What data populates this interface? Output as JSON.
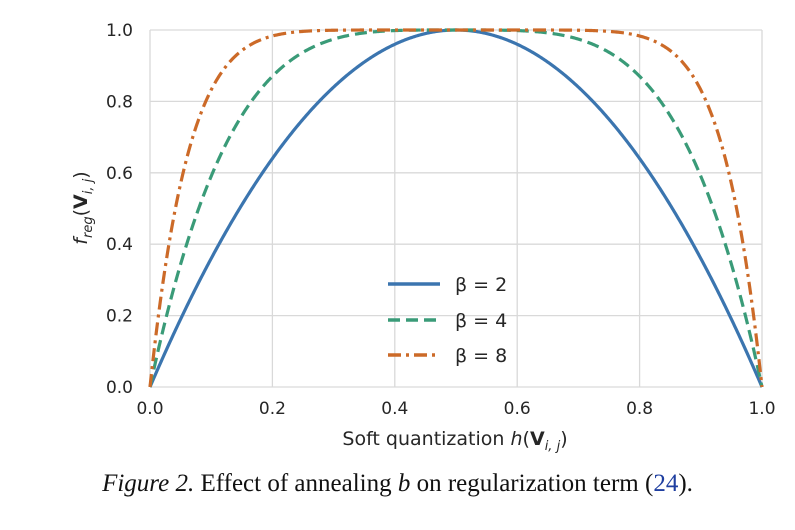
{
  "chart_data": {
    "type": "line",
    "xlabel": {
      "prefix": "Soft quantization ",
      "func": "h",
      "open": "(",
      "bold": "V",
      "sub": "i, j",
      "close": ")"
    },
    "ylabel": {
      "func": "f",
      "func_sub": "reg",
      "open": "(",
      "bold": "V",
      "sub": "i, j",
      "close": ")"
    },
    "xlim": [
      0.0,
      1.0
    ],
    "ylim": [
      0.0,
      1.0
    ],
    "xticks": [
      "0.0",
      "0.2",
      "0.4",
      "0.6",
      "0.8",
      "1.0"
    ],
    "yticks": [
      "0.0",
      "0.2",
      "0.4",
      "0.6",
      "0.8",
      "1.0"
    ],
    "grid": true,
    "legend_position": "lower-center",
    "formula": "1 - |2x - 1|^beta",
    "series": [
      {
        "name": "β = 2",
        "beta": 2,
        "color": "#3b75af",
        "style": "solid"
      },
      {
        "name": "β = 4",
        "beta": 4,
        "color": "#3a9b78",
        "style": "dashed"
      },
      {
        "name": "β = 8",
        "beta": 8,
        "color": "#cc6a28",
        "style": "dashdot"
      }
    ]
  },
  "caption": {
    "label": "Figure 2.",
    "text_before": " Effect of annealing ",
    "symbol": "b",
    "text_after": " on regularization term (",
    "ref": "24",
    "end": ")."
  }
}
